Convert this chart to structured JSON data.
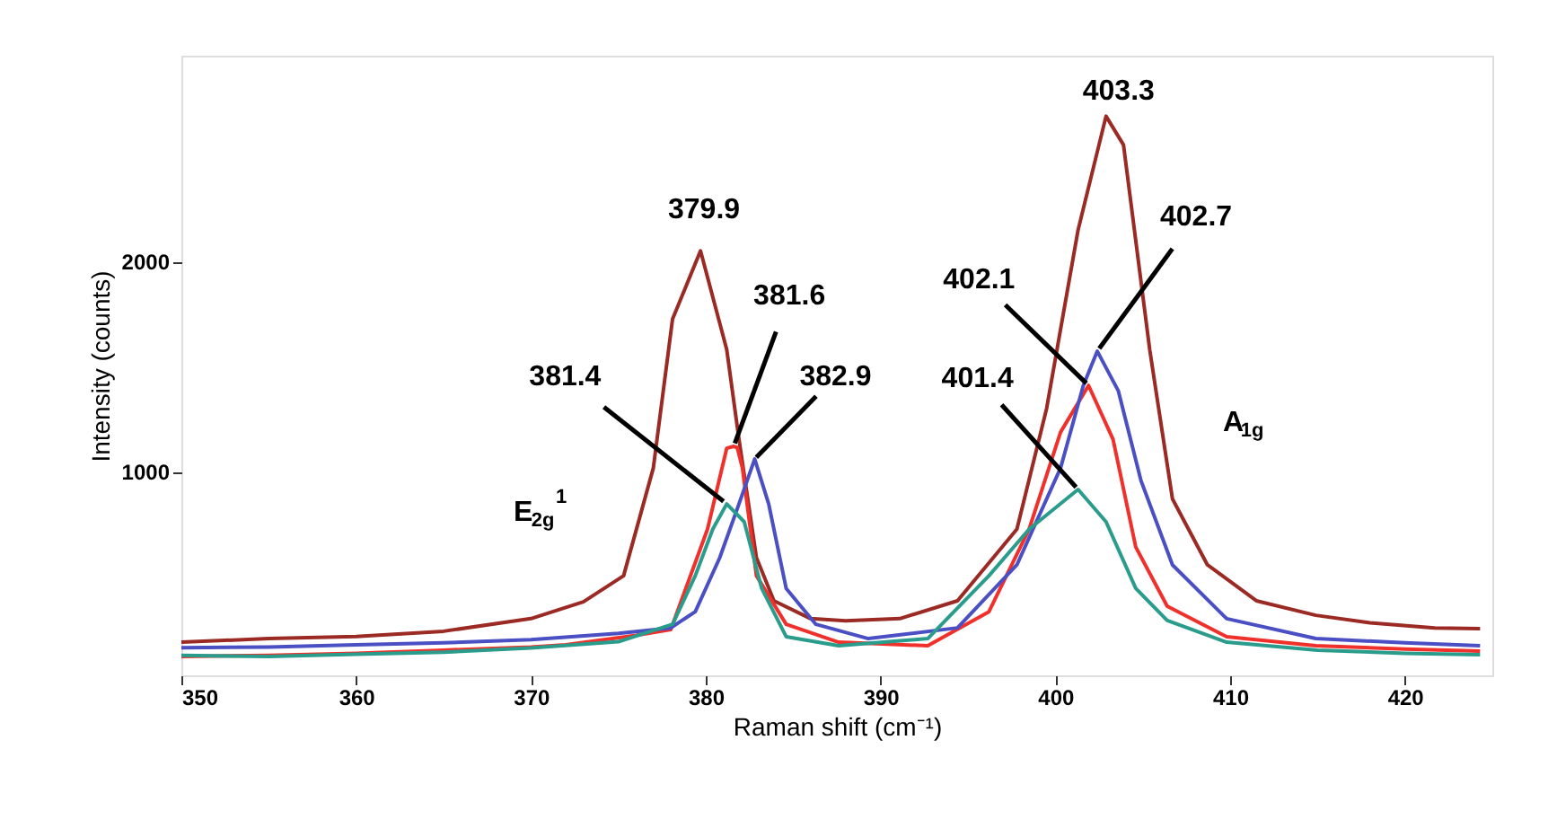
{
  "chart_data": {
    "type": "line",
    "xlabel": "Raman shift (cm⁻¹)",
    "ylabel": "Intensity (counts)",
    "xlim": [
      350,
      425
    ],
    "xticks": [
      350,
      360,
      370,
      380,
      390,
      400,
      410,
      420
    ],
    "ylim": [
      30,
      2980
    ],
    "yticks": [
      1000,
      2000
    ],
    "grid": false,
    "marker": "none",
    "line_style": "solid",
    "series": [
      {
        "color": "#9b2a24",
        "x": [
          350,
          355,
          360,
          365,
          370,
          373,
          375.3,
          377.0,
          378.1,
          379.7,
          381.2,
          381.9,
          382.9,
          383.9,
          386,
          388,
          391.1,
          394.4,
          397.8,
          399.5,
          401.3,
          402.9,
          403.9,
          405.4,
          406.7,
          408.7,
          411.5,
          414.9,
          418,
          421.7,
          424.3
        ],
        "values": [
          188,
          205,
          215,
          240,
          300,
          380,
          504,
          1017,
          1726,
          2051,
          1581,
          1154,
          590,
          385,
          300,
          290,
          300,
          385,
          726,
          1300,
          2150,
          2692,
          2555,
          1580,
          870,
          556,
          385,
          316,
          280,
          256,
          252
        ]
      },
      {
        "color": "#f0302a",
        "x": [
          350,
          355,
          360,
          365,
          370,
          372,
          376,
          378,
          380.1,
          381.2,
          381.6,
          381.8,
          382.1,
          382.9,
          384.6,
          387.6,
          392.7,
          396.2,
          398.5,
          400.3,
          401.9,
          403.3,
          404.6,
          406.4,
          409.8,
          414.9,
          420,
          424.3
        ],
        "values": [
          120,
          125,
          135,
          150,
          165,
          175,
          220,
          248,
          726,
          1111,
          1120,
          1115,
          1017,
          504,
          273,
          188,
          171,
          333,
          726,
          1188,
          1410,
          1154,
          641,
          359,
          214,
          171,
          155,
          145
        ]
      },
      {
        "color": "#4a4fc4",
        "x": [
          350,
          355,
          360,
          365,
          370,
          375,
          378,
          379.4,
          380.8,
          381.9,
          382.8,
          383.6,
          384.6,
          386.3,
          389.3,
          394.4,
          397.8,
          400.3,
          401.6,
          402.4,
          403.6,
          404.9,
          406.7,
          409.8,
          414.9,
          420,
          424.3
        ],
        "values": [
          162,
          165,
          175,
          185,
          200,
          230,
          256,
          333,
          590,
          846,
          1060,
          846,
          444,
          273,
          205,
          256,
          556,
          1017,
          1410,
          1573,
          1385,
          957,
          556,
          300,
          205,
          185,
          171
        ]
      },
      {
        "color": "#2a9c8c",
        "x": [
          350,
          355,
          360,
          365,
          370,
          375,
          378.1,
          379.4,
          380.4,
          381.2,
          382.2,
          383.2,
          384.6,
          387.6,
          392.7,
          396.2,
          398.5,
          401.3,
          402.9,
          404.6,
          406.4,
          409.8,
          415,
          420,
          424.3
        ],
        "values": [
          125,
          120,
          130,
          140,
          160,
          190,
          273,
          504,
          726,
          846,
          761,
          444,
          214,
          171,
          205,
          504,
          726,
          915,
          761,
          444,
          291,
          188,
          150,
          135,
          128
        ]
      }
    ],
    "annotations": [
      {
        "text": "379.9",
        "x": 379.9,
        "y": 2051
      },
      {
        "text": "381.6",
        "x": 381.6,
        "y": 1120
      },
      {
        "text": "382.9",
        "x": 382.8,
        "y": 1060
      },
      {
        "text": "381.4",
        "x": 381.2,
        "y": 846
      },
      {
        "text": "403.3",
        "x": 402.9,
        "y": 2692
      },
      {
        "text": "402.7",
        "x": 402.4,
        "y": 1573
      },
      {
        "text": "402.1",
        "x": 401.9,
        "y": 1410
      },
      {
        "text": "401.4",
        "x": 401.3,
        "y": 915
      },
      "E$_{2g}$$^{1}$",
      "A$_{1g}$"
    ]
  }
}
